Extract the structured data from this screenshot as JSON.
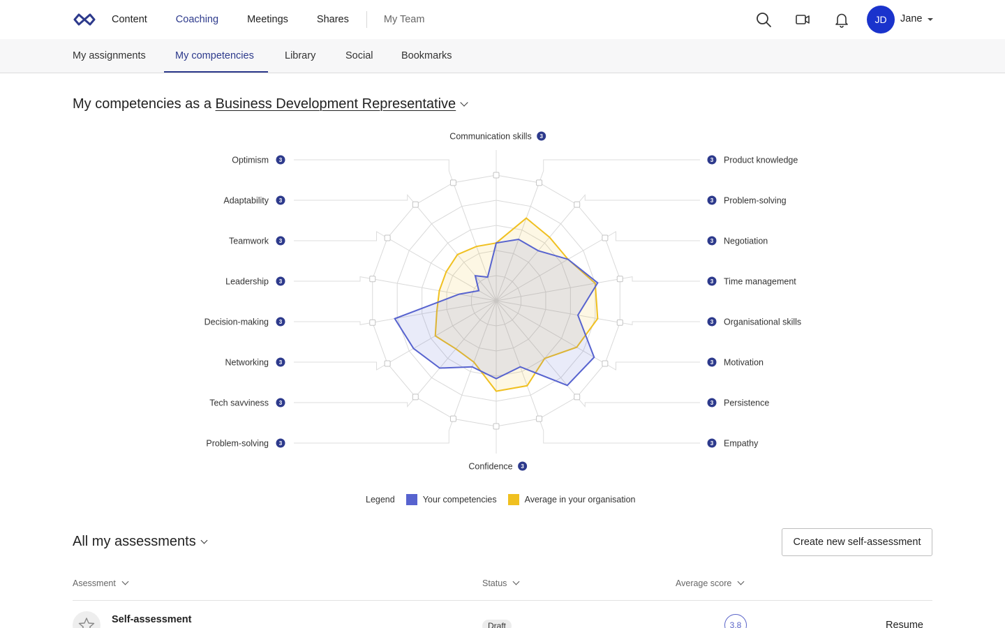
{
  "nav": {
    "items": [
      "Content",
      "Coaching",
      "Meetings",
      "Shares"
    ],
    "active": "Coaching",
    "team": "My Team"
  },
  "user": {
    "initials": "JD",
    "name": "Jane"
  },
  "icons": {
    "logo": "infinity-logo-icon",
    "search": "search-icon",
    "video": "video-camera-icon",
    "bell": "bell-icon"
  },
  "subnav": {
    "tabs": [
      "My assignments",
      "My competencies",
      "Library",
      "Social",
      "Bookmarks"
    ],
    "active": "My competencies"
  },
  "heading": {
    "prefix": "My competencies as a",
    "role": "Business Development Representative"
  },
  "chart_data": {
    "type": "radar",
    "axes": [
      "Communication skills",
      "Product knowledge",
      "Problem-solving",
      "Negotiation",
      "Time management",
      "Organisational skills",
      "Motivation",
      "Persistence",
      "Empathy",
      "Confidence",
      "Problem-solving",
      "Tech savviness",
      "Networking",
      "Decision-making",
      "Leadership",
      "Teamwork",
      "Adaptability",
      "Optimism"
    ],
    "axis_counts": [
      3,
      3,
      3,
      3,
      3,
      3,
      3,
      3,
      3,
      3,
      3,
      3,
      3,
      3,
      3,
      3,
      3,
      3
    ],
    "rmax": 5,
    "rings": 5,
    "series": [
      {
        "name": "Your competencies",
        "color": "#5763cf",
        "values": [
          2.3,
          2.6,
          2.6,
          3.3,
          4.1,
          3.3,
          4.5,
          4.4,
          2.8,
          3.1,
          2.8,
          3.5,
          3.8,
          4.1,
          1.5,
          0.8,
          1.3,
          1.0
        ]
      },
      {
        "name": "Average in your organisation",
        "color": "#f0c020",
        "values": [
          2.3,
          3.5,
          3.3,
          3.3,
          4.0,
          4.1,
          3.7,
          3.0,
          3.6,
          3.6,
          2.6,
          2.5,
          2.8,
          2.4,
          2.3,
          2.3,
          2.4,
          2.3
        ]
      }
    ]
  },
  "legend": {
    "label": "Legend"
  },
  "assessments": {
    "title": "All my assessments",
    "create_label": "Create new self-assessment",
    "columns": [
      "Asessment",
      "Status",
      "Average score"
    ],
    "rows": [
      {
        "title": "Self-assessment",
        "status": "Draft",
        "score": "3.8",
        "action": "Resume"
      }
    ]
  }
}
